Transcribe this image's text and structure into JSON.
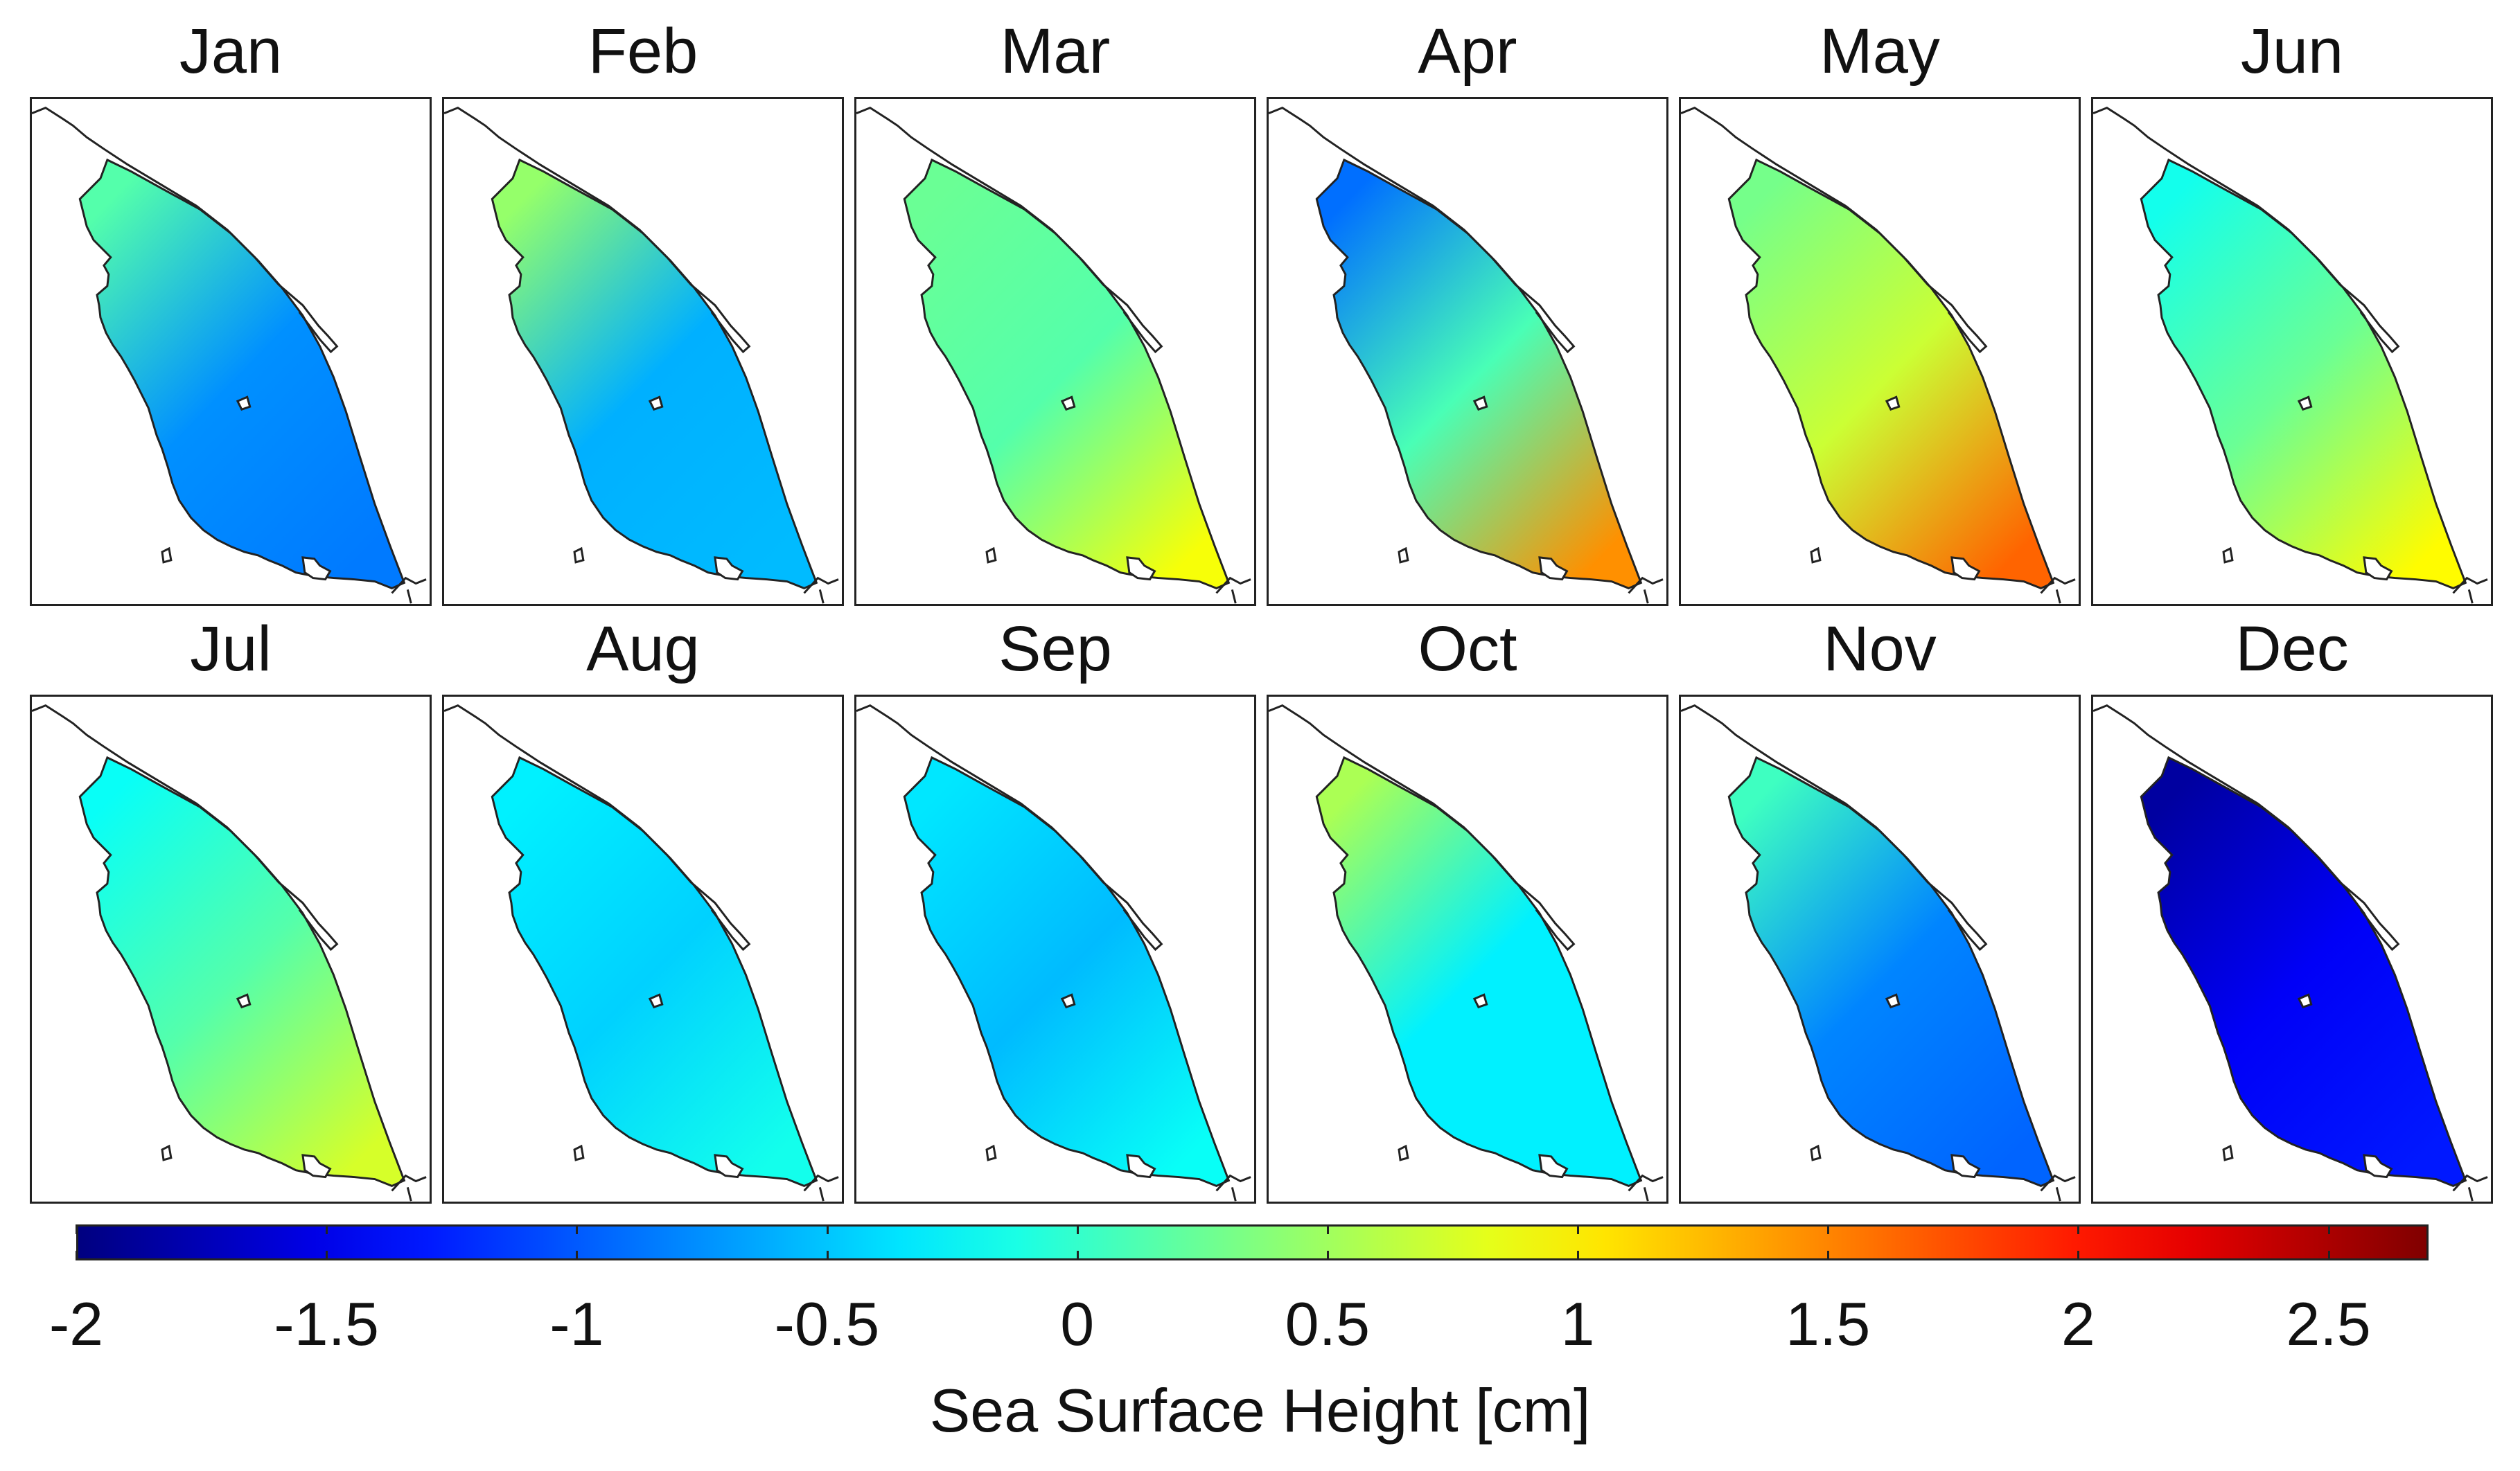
{
  "chart_data": {
    "type": "heatmap",
    "description_units": "cm",
    "colormap": "jet",
    "colorbar": {
      "label": "Sea Surface Height [cm]",
      "range": [
        -2,
        2.7
      ],
      "tick_values": [
        -2,
        -1.5,
        -1,
        -0.5,
        0,
        0.5,
        1,
        1.5,
        2,
        2.5
      ],
      "tick_labels": [
        "-2",
        "-1.5",
        "-1",
        "-0.5",
        "0",
        "0.5",
        "1",
        "1.5",
        "2",
        "2.5"
      ]
    },
    "panels": [
      {
        "month": "Jan",
        "north": 0.15,
        "mid": -0.75,
        "south": -0.85
      },
      {
        "month": "Feb",
        "north": 0.45,
        "mid": -0.6,
        "south": -0.55
      },
      {
        "month": "Mar",
        "north": 0.25,
        "mid": 0.15,
        "south": 0.9
      },
      {
        "month": "Apr",
        "north": -0.9,
        "mid": 0.1,
        "south": 1.45
      },
      {
        "month": "May",
        "north": 0.3,
        "mid": 0.7,
        "south": 1.65
      },
      {
        "month": "Jun",
        "north": -0.15,
        "mid": 0.25,
        "south": 0.95
      },
      {
        "month": "Jul",
        "north": -0.2,
        "mid": 0.15,
        "south": 0.75
      },
      {
        "month": "Aug",
        "north": -0.3,
        "mid": -0.45,
        "south": -0.15
      },
      {
        "month": "Sep",
        "north": -0.35,
        "mid": -0.55,
        "south": -0.2
      },
      {
        "month": "Oct",
        "north": 0.55,
        "mid": -0.3,
        "south": -0.3
      },
      {
        "month": "Nov",
        "north": 0.05,
        "mid": -0.8,
        "south": -0.95
      },
      {
        "month": "Dec",
        "north": -1.85,
        "mid": -1.45,
        "south": -1.3
      }
    ]
  }
}
